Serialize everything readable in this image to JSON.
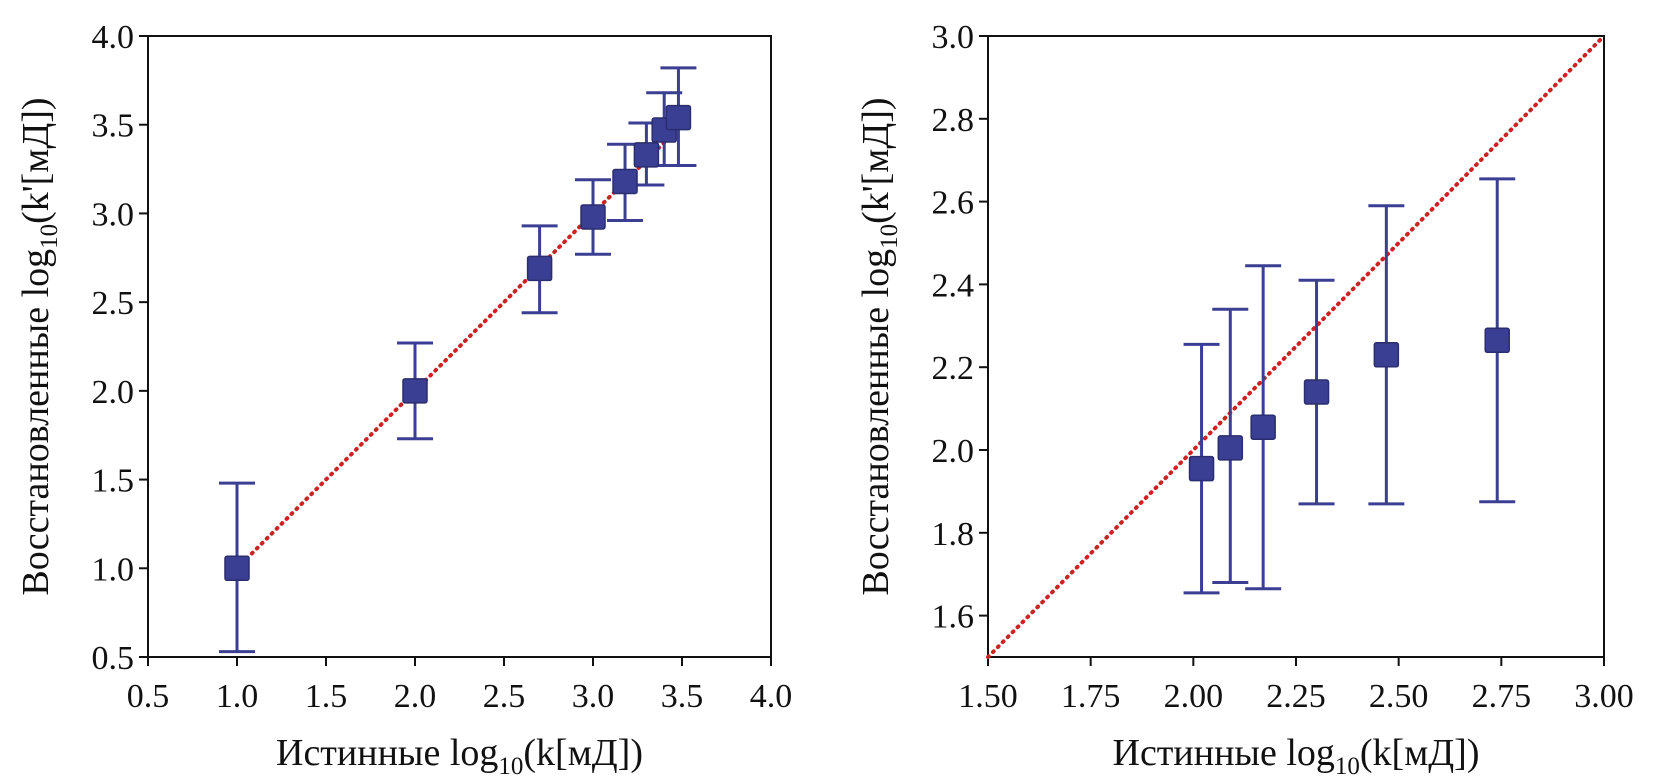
{
  "chart_data": [
    {
      "type": "scatter",
      "title": "",
      "xlabel": {
        "pre": "Истинные log",
        "sub": "10",
        "post": "(k[мД])"
      },
      "ylabel": {
        "pre": "Восстановленные log",
        "sub": "10",
        "post": "(k'[мД])"
      },
      "xlim": [
        0.5,
        4.0
      ],
      "ylim": [
        0.5,
        4.0
      ],
      "xticks": [
        "0.5",
        "1.0",
        "1.5",
        "2.0",
        "2.5",
        "3.0",
        "3.5",
        "4.0"
      ],
      "yticks": [
        "0.5",
        "1.0",
        "1.5",
        "2.0",
        "2.5",
        "3.0",
        "3.5",
        "4.0"
      ],
      "grid": false,
      "reference_line": {
        "from": [
          1.0,
          1.0
        ],
        "to": [
          3.5,
          3.5
        ],
        "style": "dotted",
        "color": "#cc2222"
      },
      "marker_color": "#3b3f94",
      "points": [
        {
          "x": 1.0,
          "y": 1.0,
          "err_low": 0.53,
          "err_high": 1.48
        },
        {
          "x": 2.0,
          "y": 2.0,
          "err_low": 1.73,
          "err_high": 2.27
        },
        {
          "x": 2.7,
          "y": 2.69,
          "err_low": 2.44,
          "err_high": 2.93
        },
        {
          "x": 3.0,
          "y": 2.98,
          "err_low": 2.77,
          "err_high": 3.19
        },
        {
          "x": 3.18,
          "y": 3.18,
          "err_low": 2.96,
          "err_high": 3.39
        },
        {
          "x": 3.3,
          "y": 3.33,
          "err_low": 3.16,
          "err_high": 3.51
        },
        {
          "x": 3.4,
          "y": 3.47,
          "err_low": 3.27,
          "err_high": 3.68
        },
        {
          "x": 3.48,
          "y": 3.54,
          "err_low": 3.27,
          "err_high": 3.82
        }
      ]
    },
    {
      "type": "scatter",
      "title": "",
      "xlabel": {
        "pre": "Истинные log",
        "sub": "10",
        "post": "(k[мД])"
      },
      "ylabel": {
        "pre": "Восстановленные log",
        "sub": "10",
        "post": "(k'[мД])"
      },
      "xlim": [
        1.5,
        3.0
      ],
      "ylim": [
        1.5,
        3.0
      ],
      "xticks": [
        "1.50",
        "1.75",
        "2.00",
        "2.25",
        "2.50",
        "2.75",
        "3.00"
      ],
      "yticks": [
        "1.6",
        "1.8",
        "2.0",
        "2.2",
        "2.4",
        "2.6",
        "2.8",
        "3.0"
      ],
      "grid": false,
      "reference_line": {
        "from": [
          1.5,
          1.5
        ],
        "to": [
          3.0,
          3.0
        ],
        "style": "dotted",
        "color": "#cc2222"
      },
      "marker_color": "#3b3f94",
      "points": [
        {
          "x": 2.02,
          "y": 1.955,
          "err_low": 1.655,
          "err_high": 2.255
        },
        {
          "x": 2.09,
          "y": 2.005,
          "err_low": 1.68,
          "err_high": 2.34
        },
        {
          "x": 2.17,
          "y": 2.055,
          "err_low": 1.665,
          "err_high": 2.445
        },
        {
          "x": 2.3,
          "y": 2.14,
          "err_low": 1.87,
          "err_high": 2.41
        },
        {
          "x": 2.47,
          "y": 2.23,
          "err_low": 1.87,
          "err_high": 2.59
        },
        {
          "x": 2.74,
          "y": 2.265,
          "err_low": 1.875,
          "err_high": 2.655
        }
      ]
    }
  ]
}
